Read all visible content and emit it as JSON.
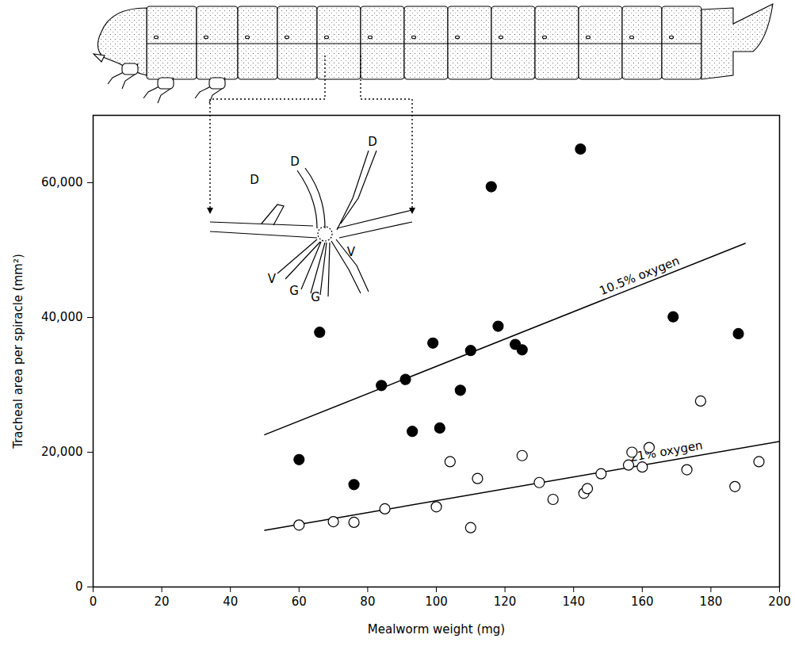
{
  "chart_data": {
    "type": "scatter",
    "x_label": "Mealworm weight (mg)",
    "y_label": "Tracheal area per spiracle (mm²)",
    "xlim": [
      0,
      200
    ],
    "xticks": [
      0,
      20,
      40,
      60,
      80,
      100,
      120,
      140,
      160,
      180,
      200
    ],
    "ylim": [
      0,
      70000
    ],
    "yticks": [
      0,
      {
        "value": 20000,
        "label": "20,000"
      },
      {
        "value": 40000,
        "label": "40,000"
      },
      {
        "value": 60000,
        "label": "60,000"
      }
    ],
    "grid": false,
    "annotations": [
      "D",
      "D",
      "D",
      "V",
      "V",
      "G",
      "G"
    ],
    "series": [
      {
        "name": "10.5% oxygen",
        "color": "#000000",
        "marker": "filled",
        "x": [
          60,
          66,
          76,
          84,
          91,
          93,
          99,
          101,
          107,
          110,
          116,
          118,
          123,
          125,
          142,
          169,
          188
        ],
        "values": [
          18900,
          37800,
          15200,
          29900,
          30800,
          23100,
          36200,
          23600,
          29200,
          35100,
          59400,
          38700,
          36000,
          35200,
          65000,
          40100,
          37600
        ],
        "fit": {
          "x": [
            50,
            190
          ],
          "values": [
            22600,
            51000
          ]
        }
      },
      {
        "name": "21% oxygen",
        "color": "#000000",
        "marker": "open",
        "x": [
          60,
          70,
          76,
          85,
          100,
          104,
          110,
          112,
          125,
          130,
          134,
          143,
          144,
          148,
          156,
          157,
          160,
          162,
          173,
          177,
          187,
          194
        ],
        "values": [
          9200,
          9700,
          9600,
          11600,
          11900,
          18600,
          8800,
          16100,
          19500,
          15500,
          13000,
          13900,
          14600,
          16800,
          18100,
          20000,
          17800,
          20700,
          17400,
          27600,
          14900,
          18600
        ],
        "fit": {
          "x": [
            50,
            200
          ],
          "values": [
            8400,
            21600
          ]
        }
      }
    ]
  }
}
